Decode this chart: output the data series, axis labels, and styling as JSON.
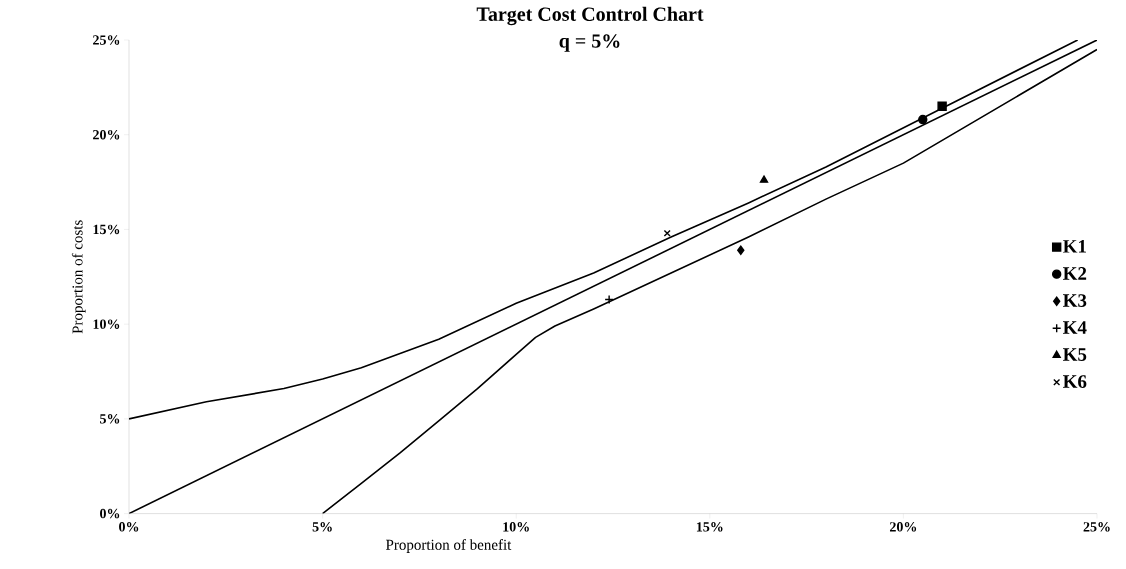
{
  "chart_data": {
    "type": "scatter",
    "title": "Target Cost Control Chart",
    "subtitle": "q = 5%",
    "xlabel": "Proportion of benefit",
    "ylabel": "Proportion of costs",
    "xlim": [
      0,
      25
    ],
    "ylim": [
      0,
      25
    ],
    "xticks": [
      {
        "value": 0,
        "label": "0%"
      },
      {
        "value": 5,
        "label": "5%"
      },
      {
        "value": 10,
        "label": "10%"
      },
      {
        "value": 15,
        "label": "15%"
      },
      {
        "value": 20,
        "label": "20%"
      },
      {
        "value": 25,
        "label": "25%"
      }
    ],
    "yticks": [
      {
        "value": 0,
        "label": "0%"
      },
      {
        "value": 5,
        "label": "5%"
      },
      {
        "value": 10,
        "label": "10%"
      },
      {
        "value": 15,
        "label": "15%"
      },
      {
        "value": 20,
        "label": "20%"
      },
      {
        "value": 25,
        "label": "25%"
      }
    ],
    "grid": false,
    "legend": "right",
    "series": [
      {
        "type": "line",
        "color": "#000000",
        "line_style": "solid",
        "marker": "none",
        "x": [
          0,
          2,
          4,
          5,
          6,
          8,
          10,
          12,
          14,
          16,
          18,
          21,
          24.5
        ],
        "values": [
          5,
          5.9,
          6.6,
          7.1,
          7.7,
          9.2,
          11.1,
          12.7,
          14.6,
          16.4,
          18.3,
          21.4,
          25
        ]
      },
      {
        "type": "line",
        "color": "#000000",
        "line_style": "solid",
        "marker": "none",
        "x": [
          0,
          25
        ],
        "values": [
          0,
          25
        ]
      },
      {
        "type": "line",
        "color": "#000000",
        "line_style": "solid",
        "marker": "none",
        "x": [
          5,
          6,
          7,
          8,
          9,
          10,
          10.5,
          11,
          12,
          14,
          16,
          18,
          20,
          25
        ],
        "values": [
          0,
          1.6,
          3.2,
          4.9,
          6.6,
          8.4,
          9.3,
          9.9,
          10.8,
          12.7,
          14.6,
          16.6,
          18.5,
          24.5
        ]
      },
      {
        "name": "K1",
        "color": "#000000",
        "marker": "square",
        "x": [
          21.0
        ],
        "values": [
          21.5
        ]
      },
      {
        "name": "K2",
        "color": "#000000",
        "marker": "circle",
        "x": [
          20.5
        ],
        "values": [
          20.8
        ]
      },
      {
        "name": "K3",
        "color": "#000000",
        "marker": "diamond",
        "x": [
          15.8
        ],
        "values": [
          13.9
        ]
      },
      {
        "name": "K4",
        "color": "#000000",
        "marker": "plus",
        "x": [
          12.4
        ],
        "values": [
          11.3
        ]
      },
      {
        "name": "K5",
        "color": "#000000",
        "marker": "triangle",
        "x": [
          16.4
        ],
        "values": [
          17.6
        ]
      },
      {
        "name": "K6",
        "color": "#000000",
        "marker": "cross",
        "x": [
          13.9
        ],
        "values": [
          14.8
        ]
      }
    ]
  }
}
